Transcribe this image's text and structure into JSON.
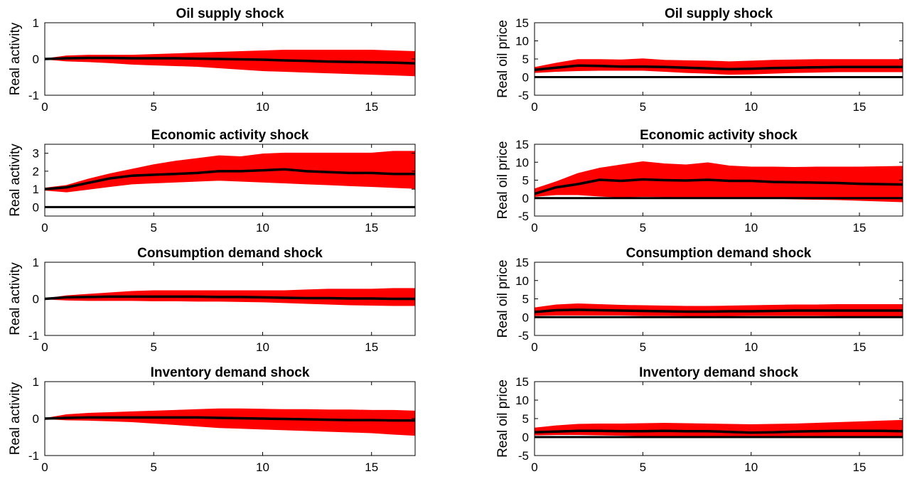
{
  "colors": {
    "band": "#ff0000",
    "median": "#000000",
    "axis": "#000000",
    "zero_line": "#000000",
    "background": "#ffffff"
  },
  "chart_data": [
    {
      "type": "area",
      "title": "Oil supply shock",
      "ylabel": "Real activity",
      "xlim": [
        0,
        17
      ],
      "ylim": [
        -1,
        1
      ],
      "xticks": [
        0,
        5,
        10,
        15
      ],
      "yticks": [
        -1,
        0,
        1
      ],
      "x": [
        0,
        1,
        2,
        3,
        4,
        5,
        6,
        7,
        8,
        9,
        10,
        11,
        12,
        13,
        14,
        15,
        16,
        17
      ],
      "band_upper": [
        0,
        0.08,
        0.1,
        0.1,
        0.1,
        0.12,
        0.14,
        0.16,
        0.18,
        0.2,
        0.22,
        0.24,
        0.24,
        0.24,
        0.24,
        0.24,
        0.22,
        0.2
      ],
      "band_lower": [
        0,
        -0.05,
        -0.07,
        -0.1,
        -0.14,
        -0.16,
        -0.18,
        -0.2,
        -0.24,
        -0.28,
        -0.32,
        -0.34,
        -0.36,
        -0.38,
        -0.4,
        -0.42,
        -0.44,
        -0.46
      ],
      "median": [
        0,
        0.02,
        0.03,
        0.03,
        0.02,
        0.02,
        0.02,
        0.01,
        0,
        -0.01,
        -0.02,
        -0.04,
        -0.05,
        -0.07,
        -0.08,
        -0.09,
        -0.1,
        -0.12
      ],
      "reference_line": null
    },
    {
      "type": "area",
      "title": "Oil supply shock",
      "ylabel": "Real oil price",
      "xlim": [
        0,
        17
      ],
      "ylim": [
        -5,
        15
      ],
      "xticks": [
        0,
        5,
        10,
        15
      ],
      "yticks": [
        -5,
        0,
        5,
        10,
        15
      ],
      "x": [
        0,
        1,
        2,
        3,
        4,
        5,
        6,
        7,
        8,
        9,
        10,
        11,
        12,
        13,
        14,
        15,
        16,
        17
      ],
      "band_upper": [
        2.6,
        3.8,
        4.8,
        4.8,
        4.7,
        5,
        4.6,
        4.5,
        4.4,
        4.2,
        4.4,
        4.6,
        4.7,
        4.8,
        4.8,
        4.8,
        4.8,
        4.8
      ],
      "band_lower": [
        1.3,
        1.6,
        1.8,
        1.9,
        1.9,
        1.9,
        1.6,
        1.3,
        1.1,
        0.8,
        0.9,
        1.1,
        1.3,
        1.4,
        1.5,
        1.5,
        1.5,
        1.5
      ],
      "median": [
        2,
        2.6,
        3.2,
        3.1,
        2.9,
        2.9,
        2.8,
        2.6,
        2.4,
        2.2,
        2.3,
        2.5,
        2.6,
        2.7,
        2.8,
        2.8,
        2.8,
        2.8
      ],
      "reference_line": 0
    },
    {
      "type": "area",
      "title": "Economic activity shock",
      "ylabel": "Real activity",
      "xlim": [
        0,
        17
      ],
      "ylim": [
        -0.5,
        3.5
      ],
      "xticks": [
        0,
        5,
        10,
        15
      ],
      "yticks": [
        0,
        1,
        2,
        3
      ],
      "x": [
        0,
        1,
        2,
        3,
        4,
        5,
        6,
        7,
        8,
        9,
        10,
        11,
        12,
        13,
        14,
        15,
        16,
        17
      ],
      "band_upper": [
        1.05,
        1.2,
        1.55,
        1.85,
        2.1,
        2.35,
        2.55,
        2.7,
        2.85,
        2.8,
        2.95,
        3,
        3,
        3,
        3,
        3,
        3.1,
        3.1
      ],
      "band_lower": [
        0.95,
        0.85,
        1,
        1.15,
        1.3,
        1.35,
        1.4,
        1.45,
        1.5,
        1.45,
        1.4,
        1.35,
        1.3,
        1.25,
        1.2,
        1.15,
        1.1,
        1.05
      ],
      "median": [
        1,
        1.1,
        1.35,
        1.6,
        1.75,
        1.8,
        1.85,
        1.9,
        2,
        2,
        2.05,
        2.1,
        2,
        1.95,
        1.9,
        1.9,
        1.85,
        1.85
      ],
      "reference_line": 0
    },
    {
      "type": "area",
      "title": "Economic activity shock",
      "ylabel": "Real oil price",
      "xlim": [
        0,
        17
      ],
      "ylim": [
        -5,
        15
      ],
      "xticks": [
        0,
        5,
        10,
        15
      ],
      "yticks": [
        -5,
        0,
        5,
        10,
        15
      ],
      "x": [
        0,
        1,
        2,
        3,
        4,
        5,
        6,
        7,
        8,
        9,
        10,
        11,
        12,
        13,
        14,
        15,
        16,
        17
      ],
      "band_upper": [
        2.5,
        4.5,
        6.8,
        8.3,
        9.2,
        10.1,
        9.5,
        9.2,
        9.8,
        8.9,
        8.6,
        8.6,
        8.5,
        8.6,
        8.6,
        8.6,
        8.7,
        8.8
      ],
      "band_lower": [
        0.5,
        1,
        1,
        0.6,
        0.3,
        0.5,
        0.4,
        0.3,
        0.3,
        0.2,
        0.2,
        0,
        -0.2,
        -0.3,
        -0.4,
        -0.6,
        -0.8,
        -1
      ],
      "median": [
        1.2,
        3,
        3.9,
        5.1,
        4.8,
        5.2,
        5,
        4.9,
        5.1,
        4.8,
        4.8,
        4.5,
        4.4,
        4.3,
        4.2,
        4,
        3.9,
        3.8
      ],
      "reference_line": 0
    },
    {
      "type": "area",
      "title": "Consumption demand shock",
      "ylabel": "Real activity",
      "xlim": [
        0,
        17
      ],
      "ylim": [
        -1,
        1
      ],
      "xticks": [
        0,
        5,
        10,
        15
      ],
      "yticks": [
        -1,
        0,
        1
      ],
      "x": [
        0,
        1,
        2,
        3,
        4,
        5,
        6,
        7,
        8,
        9,
        10,
        11,
        12,
        13,
        14,
        15,
        16,
        17
      ],
      "band_upper": [
        0,
        0.08,
        0.12,
        0.16,
        0.2,
        0.22,
        0.22,
        0.22,
        0.22,
        0.22,
        0.22,
        0.22,
        0.24,
        0.26,
        0.26,
        0.26,
        0.28,
        0.28
      ],
      "band_lower": [
        0,
        -0.03,
        -0.04,
        -0.04,
        -0.04,
        -0.05,
        -0.05,
        -0.06,
        -0.06,
        -0.07,
        -0.08,
        -0.1,
        -0.12,
        -0.14,
        -0.16,
        -0.17,
        -0.18,
        -0.18
      ],
      "median": [
        0,
        0.04,
        0.05,
        0.06,
        0.06,
        0.06,
        0.06,
        0.06,
        0.05,
        0.05,
        0.04,
        0.03,
        0.02,
        0.02,
        0.01,
        0.01,
        0,
        0
      ],
      "reference_line": null
    },
    {
      "type": "area",
      "title": "Consumption demand shock",
      "ylabel": "Real oil price",
      "xlim": [
        0,
        17
      ],
      "ylim": [
        -5,
        15
      ],
      "xticks": [
        0,
        5,
        10,
        15
      ],
      "yticks": [
        -5,
        0,
        5,
        10,
        15
      ],
      "x": [
        0,
        1,
        2,
        3,
        4,
        5,
        6,
        7,
        8,
        9,
        10,
        11,
        12,
        13,
        14,
        15,
        16,
        17
      ],
      "band_upper": [
        2.5,
        3.3,
        3.6,
        3.4,
        3.2,
        3.1,
        3,
        2.9,
        2.9,
        3,
        3.1,
        3.2,
        3.3,
        3.3,
        3.4,
        3.4,
        3.4,
        3.4
      ],
      "band_lower": [
        0.5,
        0.6,
        0.6,
        0.6,
        0.6,
        0.5,
        0.5,
        0.4,
        0.4,
        0.4,
        0.5,
        0.5,
        0.5,
        0.5,
        0.4,
        0.4,
        0.3,
        0.3
      ],
      "median": [
        1.4,
        1.9,
        2,
        1.9,
        1.8,
        1.7,
        1.6,
        1.5,
        1.5,
        1.6,
        1.6,
        1.7,
        1.8,
        1.8,
        1.8,
        1.8,
        1.8,
        1.8
      ],
      "reference_line": 0
    },
    {
      "type": "area",
      "title": "Inventory demand shock",
      "ylabel": "Real activity",
      "xlim": [
        0,
        17
      ],
      "ylim": [
        -1,
        1
      ],
      "xticks": [
        0,
        5,
        10,
        15
      ],
      "yticks": [
        -1,
        0,
        1
      ],
      "x": [
        0,
        1,
        2,
        3,
        4,
        5,
        6,
        7,
        8,
        9,
        10,
        11,
        12,
        13,
        14,
        15,
        16,
        17
      ],
      "band_upper": [
        0,
        0.1,
        0.14,
        0.16,
        0.18,
        0.2,
        0.22,
        0.24,
        0.26,
        0.26,
        0.25,
        0.24,
        0.24,
        0.23,
        0.23,
        0.22,
        0.22,
        0.2
      ],
      "band_lower": [
        0,
        -0.03,
        -0.04,
        -0.06,
        -0.08,
        -0.12,
        -0.16,
        -0.2,
        -0.24,
        -0.26,
        -0.28,
        -0.3,
        -0.32,
        -0.34,
        -0.36,
        -0.38,
        -0.42,
        -0.45
      ],
      "median": [
        0,
        0.02,
        0.03,
        0.03,
        0.03,
        0.03,
        0.03,
        0.03,
        0.02,
        0.01,
        0,
        -0.01,
        -0.02,
        -0.03,
        -0.04,
        -0.04,
        -0.05,
        -0.05
      ],
      "reference_line": null
    },
    {
      "type": "area",
      "title": "Inventory demand shock",
      "ylabel": "Real oil price",
      "xlim": [
        0,
        17
      ],
      "ylim": [
        -5,
        15
      ],
      "xticks": [
        0,
        5,
        10,
        15
      ],
      "yticks": [
        -5,
        0,
        5,
        10,
        15
      ],
      "x": [
        0,
        1,
        2,
        3,
        4,
        5,
        6,
        7,
        8,
        9,
        10,
        11,
        12,
        13,
        14,
        15,
        16,
        17
      ],
      "band_upper": [
        2.4,
        3,
        3.4,
        3.5,
        3.5,
        3.6,
        3.7,
        3.6,
        3.5,
        3.4,
        3.3,
        3.4,
        3.5,
        3.7,
        3.9,
        4.1,
        4.3,
        4.5
      ],
      "band_lower": [
        0.6,
        0.7,
        0.7,
        0.6,
        0.5,
        0.4,
        0.4,
        0.3,
        0.2,
        0.1,
        -0.1,
        0,
        0.1,
        0.2,
        0.2,
        0.2,
        0.1,
        0
      ],
      "median": [
        1.3,
        1.5,
        1.7,
        1.7,
        1.6,
        1.6,
        1.7,
        1.6,
        1.6,
        1.4,
        1.2,
        1.3,
        1.5,
        1.6,
        1.7,
        1.7,
        1.7,
        1.6
      ],
      "reference_line": 0
    }
  ]
}
